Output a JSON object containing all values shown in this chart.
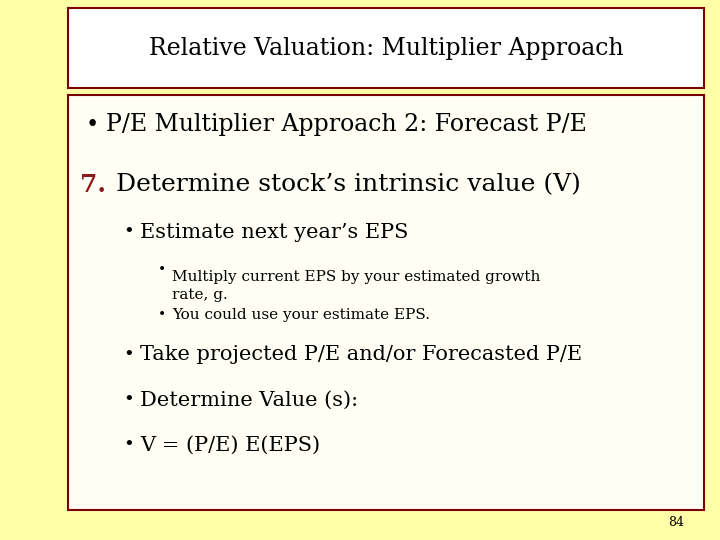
{
  "background_color": "#FFFFA8",
  "title_box_facecolor": "#FFFFFF",
  "title_box_edgecolor": "#7B0000",
  "content_box_facecolor": "#FFFFF5",
  "content_box_edgecolor": "#7B0000",
  "title_text": "Relative Valuation: Multiplier Approach",
  "title_fontsize": 17,
  "title_color": "#000000",
  "bullet1_text": "P/E Multiplier Approach 2: Forecast P/E",
  "bullet1_fontsize": 17,
  "bullet1_color": "#000000",
  "item7_label": "7.",
  "item7_label_color": "#8B1A1A",
  "item7_text": "Determine stock’s intrinsic value (V)",
  "item7_fontsize": 18,
  "item7_color": "#000000",
  "sub_bullet1": "Estimate next year’s EPS",
  "sub_bullet1_fontsize": 15,
  "sub_sub_bullet1": "Multiply current EPS by your estimated growth\nrate, g.",
  "sub_sub_bullet2": "You could use your estimate EPS.",
  "sub_sub_fontsize": 11,
  "sub_bullet2": "Take projected P/E and/or Forecasted P/E",
  "sub_bullet3": "Determine Value (s):",
  "sub_bullet4": "V = (P/E) E(EPS)",
  "sub_bullet_fontsize": 15,
  "text_color": "#000000",
  "page_number": "84",
  "page_number_fontsize": 9
}
